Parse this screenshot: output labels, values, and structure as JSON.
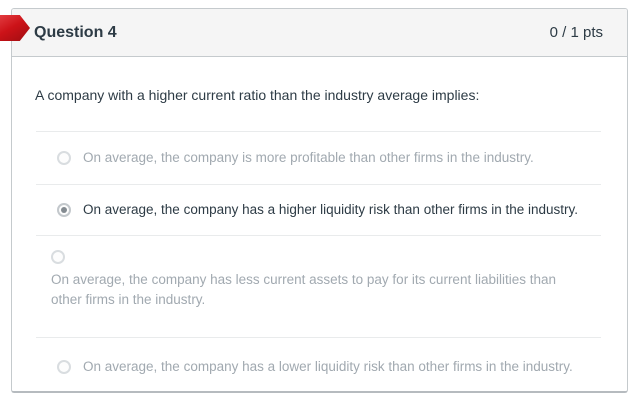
{
  "header": {
    "title": "Question 4",
    "points": "0 / 1 pts"
  },
  "question": {
    "text": "A company with a higher current ratio than the industry average implies:"
  },
  "answers": {
    "options": [
      {
        "label": "On average, the company is more profitable than other firms in the industry.",
        "selected": false,
        "layout": "inline"
      },
      {
        "label": "On average, the company has a higher liquidity risk than other firms in the industry.",
        "selected": true,
        "layout": "inline"
      },
      {
        "label": "On average, the company has less current assets to pay for its current liabilities than other firms in the industry.",
        "selected": false,
        "layout": "block"
      },
      {
        "label": "On average, the company has a lower liquidity risk than other firms in the industry.",
        "selected": false,
        "layout": "inline"
      }
    ]
  },
  "icons": {
    "flag_arrow": "red-flag-arrow",
    "radio_selected": "radio-selected",
    "radio_unselected": "radio-unselected"
  },
  "colors": {
    "accent_red": "#cc1218",
    "ink": "#2d3b45",
    "muted_text": "#a1a9b0",
    "card_border": "#c5cacd",
    "header_bg": "#f5f5f5",
    "divider": "#e9ebec"
  }
}
